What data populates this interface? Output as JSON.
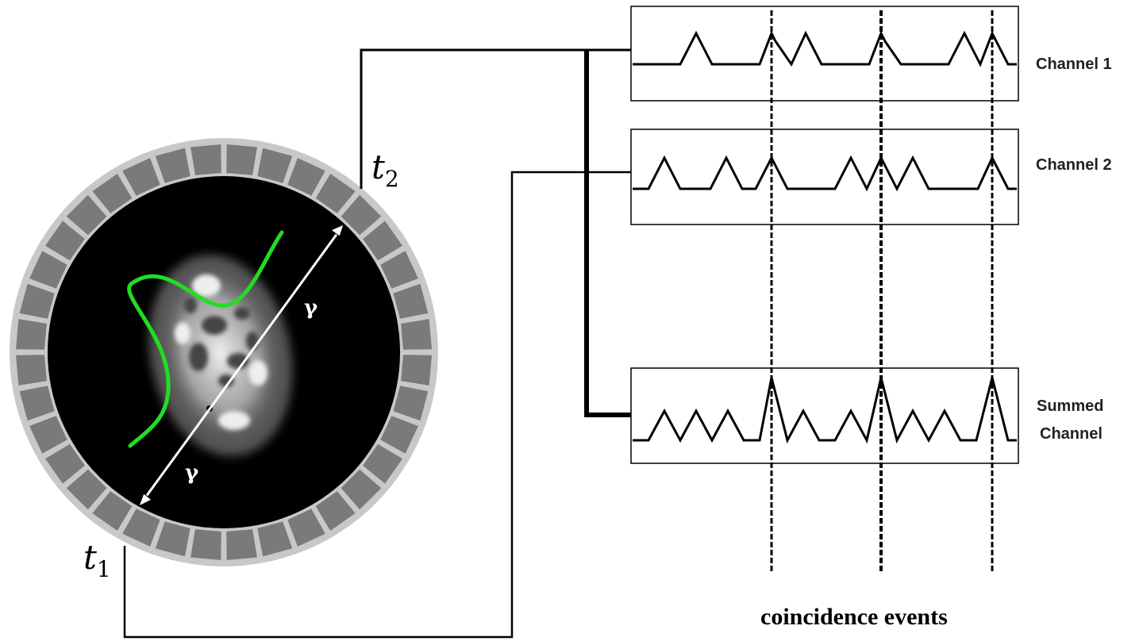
{
  "labels": {
    "t2": "t",
    "t2_sub": "2",
    "t1": "t",
    "t1_sub": "1",
    "gamma_upper": "γ",
    "gamma_lower": "γ",
    "caption": "coincidence events"
  },
  "channels": [
    {
      "label_lines": [
        "Channel 1"
      ]
    },
    {
      "label_lines": [
        "Channel 2"
      ]
    },
    {
      "label_lines": [
        "Summed",
        "Channel"
      ]
    }
  ],
  "colors": {
    "curve": "#22dd22",
    "ring": "#c8c8c8",
    "detector": "#7a7a7a",
    "background": "#000000",
    "arrow": "#ffffff",
    "line": "#000000"
  },
  "icons": {
    "scanner": "pet-scanner-ring-icon",
    "brain": "brain-scan-image"
  }
}
